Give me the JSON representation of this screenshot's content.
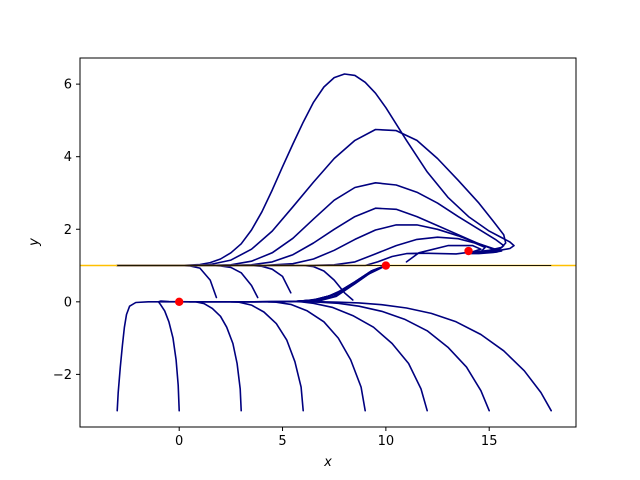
{
  "chart_data": {
    "type": "line",
    "xlabel": "x",
    "ylabel": "y",
    "xlim": [
      -4.8,
      19.2
    ],
    "ylim": [
      -3.45,
      6.72
    ],
    "xticks": [
      0,
      5,
      10,
      15
    ],
    "yticks": [
      -2,
      0,
      2,
      4,
      6
    ],
    "grid": false,
    "colors": {
      "trajectories": "#00007f",
      "nullcline": "#ffc000",
      "points": "#ff0000",
      "axes": "#000000"
    },
    "reference_lines": [
      {
        "y": 1.0,
        "x": [
          -4.8,
          19.2
        ],
        "color": "#ffc000"
      },
      {
        "y": 1.0,
        "x": [
          -3,
          18
        ],
        "color": "#000000"
      }
    ],
    "points": [
      {
        "x": 0,
        "y": 0
      },
      {
        "x": 10,
        "y": 1.0
      },
      {
        "x": 14,
        "y": 1.4
      }
    ],
    "series": [
      {
        "x": [
          -3,
          -2.5,
          -2,
          -1.5,
          -1,
          -0.5,
          0,
          0.5,
          1,
          1.5,
          1.8
        ],
        "y": [
          1,
          1,
          1,
          1,
          1,
          1,
          1,
          0.99,
          0.93,
          0.6,
          0.12
        ]
      },
      {
        "x": [
          -3,
          -1,
          0,
          1,
          1.5,
          2,
          2.5,
          3,
          3.5,
          3.8
        ],
        "y": [
          1,
          1,
          1,
          1,
          1,
          0.99,
          0.95,
          0.8,
          0.45,
          0.12
        ]
      },
      {
        "x": [
          -3,
          -1,
          1,
          2.5,
          3.5,
          4,
          4.5,
          5,
          5.4
        ],
        "y": [
          1,
          1,
          1,
          1,
          1,
          0.98,
          0.9,
          0.7,
          0.25
        ]
      },
      {
        "x": [
          -3,
          0,
          3,
          5,
          6,
          6.5,
          7,
          7.5,
          8,
          8.4
        ],
        "y": [
          1,
          1,
          1,
          1,
          1,
          0.97,
          0.85,
          0.6,
          0.25,
          0.05
        ]
      },
      {
        "x": [
          -3,
          0,
          3,
          6,
          8,
          9,
          9.6,
          10.3,
          11,
          11.8,
          12.6,
          13.4,
          14.2,
          14.6,
          14.2,
          13,
          11.6,
          11
        ],
        "y": [
          1,
          1,
          1,
          1,
          1,
          1,
          1.1,
          1.25,
          1.33,
          1.34,
          1.33,
          1.32,
          1.38,
          1.45,
          1.55,
          1.55,
          1.35,
          1.1
        ]
      },
      {
        "x": [
          -3,
          0,
          3,
          6,
          7.5,
          8.5,
          9.5,
          10.5,
          11.5,
          12.5,
          13.5,
          14.3,
          14.8,
          14.6,
          14
        ],
        "y": [
          1,
          1,
          1,
          1,
          1.02,
          1.1,
          1.32,
          1.55,
          1.72,
          1.78,
          1.74,
          1.62,
          1.5,
          1.38,
          1.33
        ]
      },
      {
        "x": [
          -3,
          0,
          2,
          4,
          5.5,
          6.5,
          7.5,
          8.5,
          9.5,
          10.5,
          11.5,
          12.5,
          13.5,
          14.5,
          15.2,
          15.4,
          15.2,
          14.5,
          14
        ],
        "y": [
          1,
          1,
          1,
          1,
          1.05,
          1.18,
          1.42,
          1.72,
          1.98,
          2.12,
          2.12,
          2.0,
          1.82,
          1.6,
          1.45,
          1.38,
          1.36,
          1.33,
          1.33
        ]
      },
      {
        "x": [
          -3,
          0,
          2,
          3.5,
          4.5,
          5.5,
          6.5,
          7.5,
          8.5,
          9.5,
          10.5,
          11.5,
          12.5,
          13.5,
          14.5,
          15.3,
          15.6,
          15.3,
          14.5,
          14
        ],
        "y": [
          1,
          1,
          1,
          1.02,
          1.1,
          1.3,
          1.62,
          2.0,
          2.35,
          2.58,
          2.55,
          2.35,
          2.1,
          1.85,
          1.6,
          1.45,
          1.4,
          1.37,
          1.35,
          1.34
        ]
      },
      {
        "x": [
          -3,
          -1,
          1,
          2.5,
          3.5,
          4.5,
          5.5,
          6.5,
          7.5,
          8.5,
          9.5,
          10.5,
          11.5,
          12.5,
          13.5,
          14.5,
          15.3,
          15.7,
          15.5,
          15,
          14.5,
          14
        ],
        "y": [
          1,
          1,
          1,
          1.02,
          1.12,
          1.35,
          1.75,
          2.28,
          2.8,
          3.15,
          3.28,
          3.22,
          3.02,
          2.72,
          2.35,
          2.0,
          1.72,
          1.55,
          1.45,
          1.4,
          1.37,
          1.35
        ]
      },
      {
        "x": [
          -3,
          -1,
          0.5,
          1.5,
          2.5,
          3.5,
          4.5,
          5.5,
          6.5,
          7.5,
          8.5,
          9.5,
          10.5,
          11.5,
          12.5,
          13.5,
          14.5,
          15.2,
          15.7,
          15.8,
          15.6,
          15,
          14.4,
          14
        ],
        "y": [
          1,
          1,
          1,
          1.03,
          1.15,
          1.45,
          1.95,
          2.62,
          3.3,
          3.95,
          4.45,
          4.75,
          4.72,
          4.45,
          3.95,
          3.35,
          2.72,
          2.22,
          1.85,
          1.62,
          1.5,
          1.42,
          1.38,
          1.35
        ]
      },
      {
        "x": [
          -3,
          -1,
          0,
          1,
          1.5,
          2,
          2.5,
          3,
          3.5,
          4,
          4.5,
          5,
          5.5,
          6,
          6.5,
          7,
          7.5,
          8,
          8.5,
          9,
          9.5,
          10,
          11,
          12,
          13,
          14,
          15,
          15.5,
          16,
          16.2,
          16,
          15.5,
          15,
          14.5,
          14
        ],
        "y": [
          1,
          1,
          1,
          1.03,
          1.08,
          1.18,
          1.35,
          1.6,
          1.98,
          2.48,
          3.08,
          3.72,
          4.35,
          4.95,
          5.5,
          5.92,
          6.18,
          6.28,
          6.24,
          6.05,
          5.75,
          5.35,
          4.45,
          3.58,
          2.88,
          2.35,
          1.95,
          1.8,
          1.65,
          1.55,
          1.47,
          1.42,
          1.38,
          1.36,
          1.35
        ]
      },
      {
        "x": [
          -3,
          -2.95,
          -2.85,
          -2.75,
          -2.65,
          -2.55,
          -2.4,
          -2.1,
          -1.5,
          -0.5,
          0.5,
          1.5,
          2.5,
          3.5,
          4.5,
          5.5,
          6.5,
          7.5,
          8.5,
          9.3,
          10
        ],
        "y": [
          -3,
          -2.5,
          -1.8,
          -1.2,
          -0.7,
          -0.35,
          -0.12,
          -0.02,
          0,
          0,
          0,
          0,
          0,
          0,
          0.005,
          0.01,
          0.05,
          0.2,
          0.55,
          0.85,
          1.0
        ]
      },
      {
        "x": [
          0,
          -0.05,
          -0.15,
          -0.3,
          -0.5,
          -0.7,
          -0.9,
          -1.0,
          -0.9,
          -0.5,
          0.5,
          1.5,
          2.5,
          3.5,
          4.5,
          5.5,
          6.5,
          7.5,
          8.5,
          9.3,
          10
        ],
        "y": [
          -3,
          -2.3,
          -1.6,
          -1.0,
          -0.55,
          -0.25,
          -0.08,
          0,
          0.02,
          0.01,
          0,
          0,
          0,
          0,
          0.005,
          0.01,
          0.05,
          0.2,
          0.55,
          0.85,
          1.0
        ]
      },
      {
        "x": [
          3,
          2.95,
          2.8,
          2.6,
          2.3,
          2.0,
          1.6,
          1.2,
          0.8,
          0.5,
          1.5,
          2.5,
          3.5,
          4.5,
          5.5,
          6.5,
          7.5,
          8.5,
          9.3,
          10
        ],
        "y": [
          -3,
          -2.4,
          -1.7,
          -1.15,
          -0.7,
          -0.4,
          -0.18,
          -0.05,
          0,
          0,
          0,
          0,
          0,
          0,
          0.01,
          0.05,
          0.2,
          0.55,
          0.85,
          1.0
        ]
      },
      {
        "x": [
          6,
          5.9,
          5.6,
          5.2,
          4.7,
          4.1,
          3.5,
          2.9,
          2.5,
          3.5,
          4.5,
          5.5,
          6.5,
          7.5,
          8.5,
          9.3,
          10
        ],
        "y": [
          -3,
          -2.35,
          -1.65,
          -1.05,
          -0.6,
          -0.28,
          -0.09,
          -0.01,
          0,
          0,
          0,
          0.01,
          0.05,
          0.2,
          0.55,
          0.85,
          1.0
        ]
      },
      {
        "x": [
          9,
          8.8,
          8.3,
          7.7,
          7.0,
          6.2,
          5.4,
          4.7,
          4.3,
          5,
          6,
          7,
          8,
          9,
          10
        ],
        "y": [
          -3,
          -2.35,
          -1.6,
          -1.0,
          -0.55,
          -0.25,
          -0.07,
          -0.01,
          0,
          0,
          0.02,
          0.1,
          0.35,
          0.72,
          1.0
        ]
      },
      {
        "x": [
          12,
          11.7,
          11.1,
          10.3,
          9.4,
          8.4,
          7.4,
          6.5,
          5.9,
          5.6,
          6.2,
          7.0,
          8.0,
          9.0,
          10
        ],
        "y": [
          -3,
          -2.4,
          -1.7,
          -1.15,
          -0.7,
          -0.38,
          -0.15,
          -0.04,
          0,
          0.005,
          0.02,
          0.1,
          0.35,
          0.72,
          1.0
        ]
      },
      {
        "x": [
          15,
          14.6,
          13.9,
          13.0,
          12.0,
          10.9,
          9.8,
          8.7,
          7.7,
          6.8,
          6.2,
          6.5,
          7.5,
          8.5,
          9.3,
          10
        ],
        "y": [
          -3,
          -2.45,
          -1.8,
          -1.25,
          -0.8,
          -0.48,
          -0.26,
          -0.12,
          -0.04,
          -0.01,
          0,
          0.02,
          0.15,
          0.5,
          0.82,
          1.0
        ]
      },
      {
        "x": [
          18,
          17.5,
          16.7,
          15.7,
          14.6,
          13.4,
          12.2,
          11.0,
          9.8,
          8.7,
          7.7,
          6.9,
          6.4,
          6.8,
          7.6,
          8.5,
          9.3,
          10
        ],
        "y": [
          -3,
          -2.5,
          -1.9,
          -1.35,
          -0.9,
          -0.55,
          -0.32,
          -0.17,
          -0.08,
          -0.03,
          -0.01,
          0,
          0,
          0.03,
          0.15,
          0.5,
          0.82,
          1.0
        ]
      }
    ]
  }
}
